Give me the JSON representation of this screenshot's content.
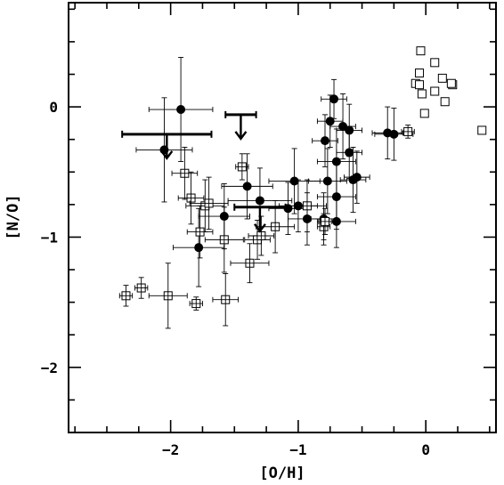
{
  "chart_data": {
    "type": "scatter",
    "xlabel": "[O/H]",
    "ylabel": "[N/O]",
    "xlim": [
      -2.8,
      0.55
    ],
    "ylim": [
      -2.5,
      0.8
    ],
    "xticks": [
      -2,
      -1,
      0
    ],
    "xtick_labels": [
      "−2",
      "−1",
      "0"
    ],
    "yticks": [
      -2,
      -1,
      0
    ],
    "ytick_labels": [
      "−2",
      "−1",
      "0"
    ],
    "grid": false,
    "series": [
      {
        "marker": "filled-circle",
        "color": "#000000",
        "points": [
          {
            "x": -1.92,
            "y": -0.02,
            "xerr": 0.25,
            "yerr": 0.4
          },
          {
            "x": -2.05,
            "y": -0.33,
            "xerr": 0.22,
            "yerr": 0.4
          },
          {
            "x": -1.78,
            "y": -1.08,
            "xerr": 0.2,
            "yerr": 0.3
          },
          {
            "x": -1.58,
            "y": -0.84,
            "xerr": 0.2,
            "yerr": 0.25
          },
          {
            "x": -1.4,
            "y": -0.61,
            "xerr": 0.2,
            "yerr": 0.25
          },
          {
            "x": -1.3,
            "y": -0.72,
            "xerr": 0.25,
            "yerr": 0.25
          },
          {
            "x": -1.08,
            "y": -0.78,
            "xerr": 0.15,
            "yerr": 0.2
          },
          {
            "x": -1.03,
            "y": -0.57,
            "xerr": 0.2,
            "yerr": 0.25
          },
          {
            "x": -1.0,
            "y": -0.76,
            "xerr": 0.15,
            "yerr": 0.2
          },
          {
            "x": -0.93,
            "y": -0.86,
            "xerr": 0.15,
            "yerr": 0.2
          },
          {
            "x": -0.8,
            "y": -0.86,
            "xerr": 0.1,
            "yerr": 0.2
          },
          {
            "x": -0.79,
            "y": -0.26,
            "xerr": 0.1,
            "yerr": 0.2
          },
          {
            "x": -0.77,
            "y": -0.57,
            "xerr": 0.15,
            "yerr": 0.25
          },
          {
            "x": -0.75,
            "y": -0.11,
            "xerr": 0.1,
            "yerr": 0.2
          },
          {
            "x": -0.72,
            "y": 0.06,
            "xerr": 0.1,
            "yerr": 0.15
          },
          {
            "x": -0.7,
            "y": -0.42,
            "xerr": 0.15,
            "yerr": 0.25
          },
          {
            "x": -0.7,
            "y": -0.69,
            "xerr": 0.15,
            "yerr": 0.25
          },
          {
            "x": -0.7,
            "y": -0.88,
            "xerr": 0.15,
            "yerr": 0.2
          },
          {
            "x": -0.65,
            "y": -0.15,
            "xerr": 0.1,
            "yerr": 0.25
          },
          {
            "x": -0.6,
            "y": -0.18,
            "xerr": 0.1,
            "yerr": 0.2
          },
          {
            "x": -0.6,
            "y": -0.35,
            "xerr": 0.1,
            "yerr": 0.2
          },
          {
            "x": -0.57,
            "y": -0.56,
            "xerr": 0.1,
            "yerr": 0.25
          },
          {
            "x": -0.54,
            "y": -0.54,
            "xerr": 0.1,
            "yerr": 0.2
          },
          {
            "x": -0.3,
            "y": -0.2,
            "xerr": 0.12,
            "yerr": 0.2
          },
          {
            "x": -0.25,
            "y": -0.21,
            "xerr": 0.15,
            "yerr": 0.2
          }
        ]
      },
      {
        "marker": "open-square-with-errorbars",
        "color": "#000000",
        "points": [
          {
            "x": -2.35,
            "y": -1.45,
            "xerr": 0.05,
            "yerr": 0.08
          },
          {
            "x": -2.23,
            "y": -1.39,
            "xerr": 0.05,
            "yerr": 0.08
          },
          {
            "x": -2.02,
            "y": -1.45,
            "xerr": 0.15,
            "yerr": 0.25
          },
          {
            "x": -1.8,
            "y": -1.51,
            "xerr": 0.05,
            "yerr": 0.05
          },
          {
            "x": -1.57,
            "y": -1.48,
            "xerr": 0.1,
            "yerr": 0.2
          },
          {
            "x": -1.89,
            "y": -0.51,
            "xerr": 0.1,
            "yerr": 0.2
          },
          {
            "x": -1.84,
            "y": -0.7,
            "xerr": 0.1,
            "yerr": 0.2
          },
          {
            "x": -1.73,
            "y": -0.76,
            "xerr": 0.15,
            "yerr": 0.2
          },
          {
            "x": -1.7,
            "y": -0.74,
            "xerr": 0.15,
            "yerr": 0.2
          },
          {
            "x": -1.77,
            "y": -0.96,
            "xerr": 0.1,
            "yerr": 0.2
          },
          {
            "x": -1.58,
            "y": -1.02,
            "xerr": 0.15,
            "yerr": 0.25
          },
          {
            "x": -1.44,
            "y": -0.46,
            "xerr": 0.05,
            "yerr": 0.1
          },
          {
            "x": -1.38,
            "y": -1.2,
            "xerr": 0.15,
            "yerr": 0.15
          },
          {
            "x": -1.32,
            "y": -1.02,
            "xerr": 0.1,
            "yerr": 0.15
          },
          {
            "x": -1.29,
            "y": -0.99,
            "xerr": 0.1,
            "yerr": 0.15
          },
          {
            "x": -1.18,
            "y": -0.92,
            "xerr": 0.15,
            "yerr": 0.2
          },
          {
            "x": -0.93,
            "y": -0.76,
            "xerr": 0.15,
            "yerr": 0.2
          },
          {
            "x": -0.8,
            "y": -0.92,
            "xerr": 0.05,
            "yerr": 0.1
          },
          {
            "x": -0.79,
            "y": -0.88,
            "xerr": 0.05,
            "yerr": 0.1
          },
          {
            "x": -0.14,
            "y": -0.19,
            "xerr": 0.05,
            "yerr": 0.05
          }
        ]
      },
      {
        "marker": "open-square",
        "color": "#000000",
        "points": [
          {
            "x": -0.04,
            "y": 0.43
          },
          {
            "x": 0.07,
            "y": 0.34
          },
          {
            "x": -0.05,
            "y": 0.26
          },
          {
            "x": -0.08,
            "y": 0.18
          },
          {
            "x": -0.05,
            "y": 0.17
          },
          {
            "x": 0.13,
            "y": 0.22
          },
          {
            "x": 0.21,
            "y": 0.17
          },
          {
            "x": 0.2,
            "y": 0.18
          },
          {
            "x": 0.07,
            "y": 0.12
          },
          {
            "x": -0.03,
            "y": 0.1
          },
          {
            "x": 0.15,
            "y": 0.04
          },
          {
            "x": -0.01,
            "y": -0.05
          },
          {
            "x": 0.44,
            "y": -0.18
          }
        ]
      },
      {
        "marker": "upper-limit",
        "color": "#000000",
        "points": [
          {
            "x": -2.03,
            "y": -0.21,
            "xerr": 0.35
          },
          {
            "x": -1.45,
            "y": -0.06,
            "xerr": 0.12
          },
          {
            "x": -1.3,
            "y": -0.77,
            "xerr": 0.2
          }
        ]
      }
    ]
  }
}
